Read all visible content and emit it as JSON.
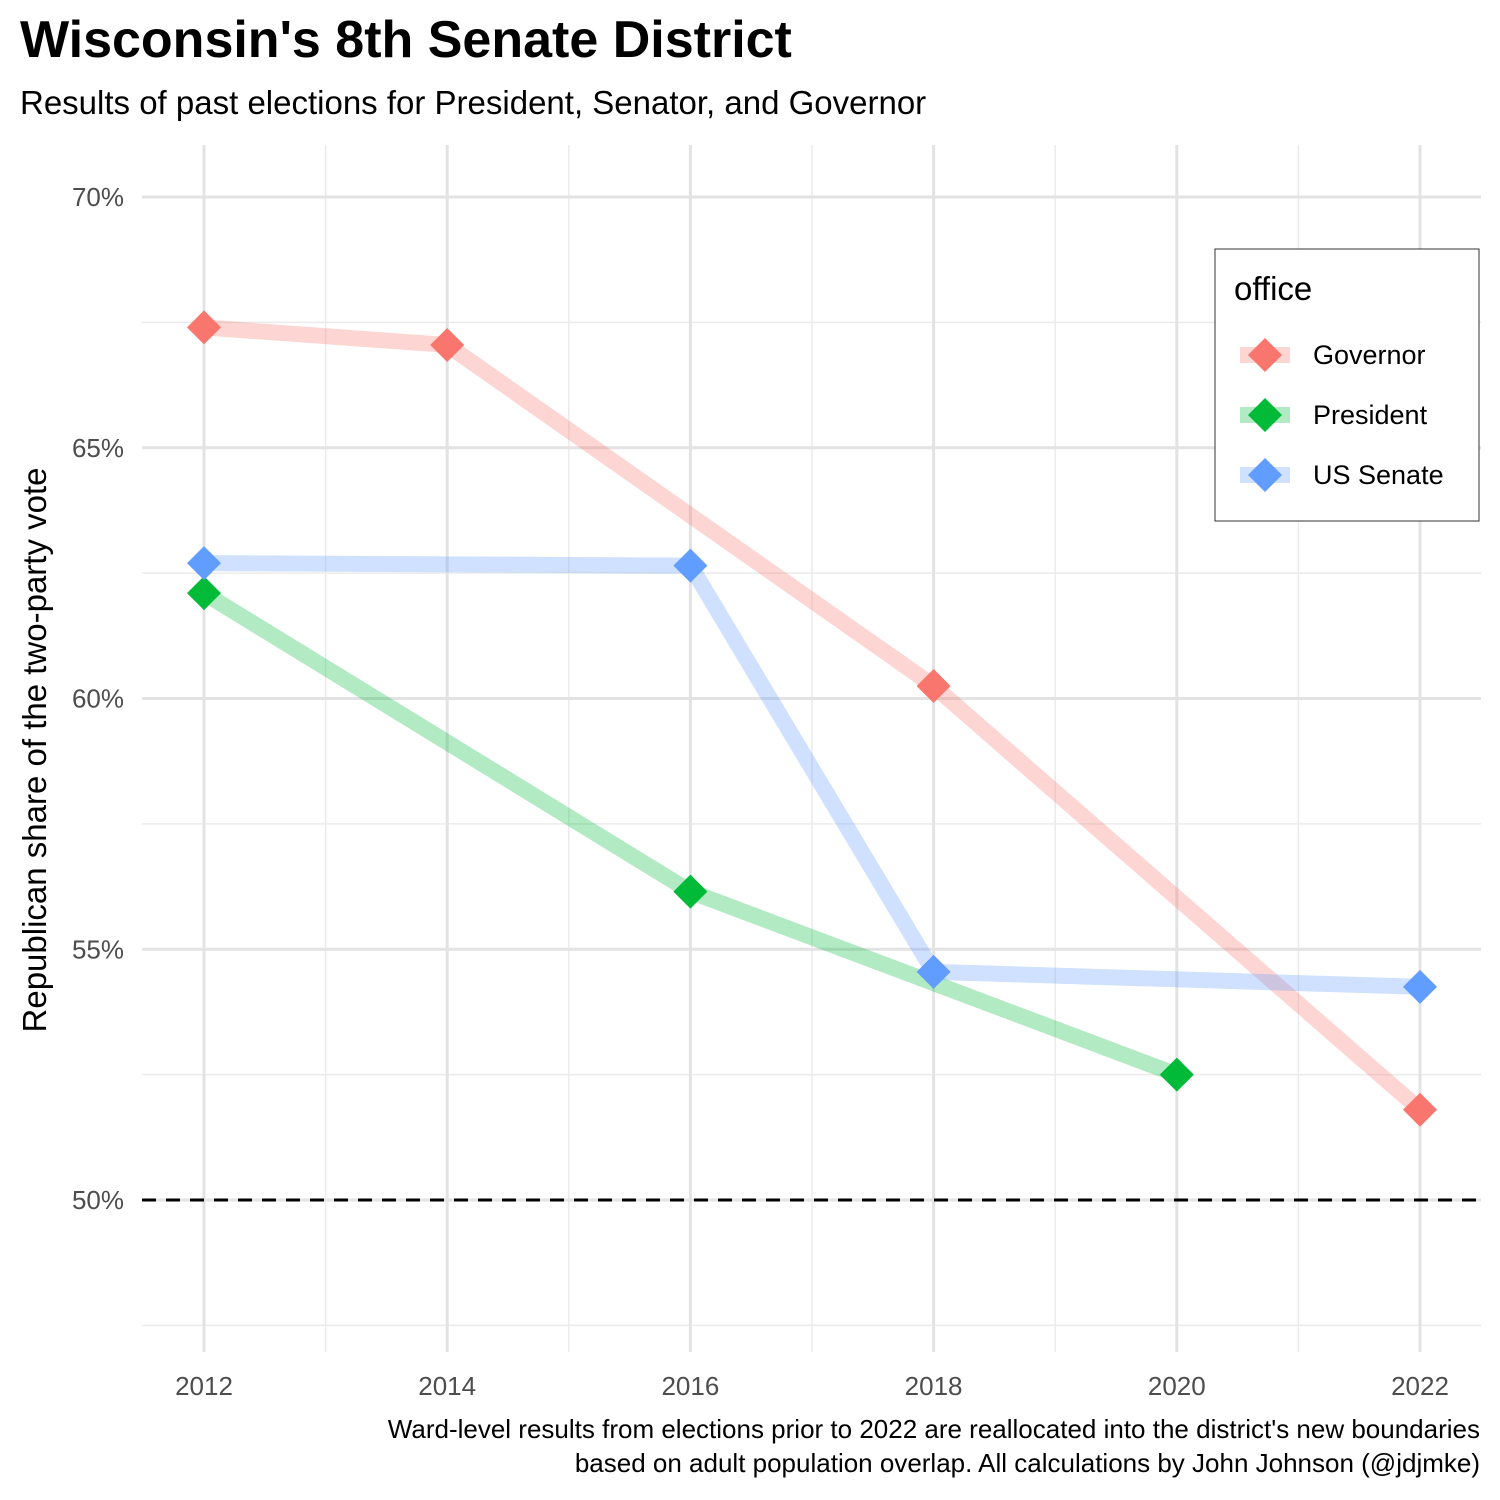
{
  "title": "Wisconsin's 8th Senate District",
  "subtitle": "Results of past elections for President, Senator, and Governor",
  "caption": [
    "Ward-level results from elections prior to 2022 are reallocated into the district's new boundaries",
    "based on adult population overlap. All calculations by John Johnson (@jdjmke)"
  ],
  "chart_data": {
    "type": "line",
    "title": "Wisconsin's 8th Senate District",
    "subtitle": "Results of past elections for President, Senator, and Governor",
    "xlabel": "",
    "ylabel": "Republican share of the two-party vote",
    "xlim": [
      2011.5,
      2022.5
    ],
    "ylim": [
      47.5,
      71.0
    ],
    "x_ticks": [
      2012,
      2014,
      2016,
      2018,
      2020,
      2022
    ],
    "x_tick_labels": [
      "2012",
      "2014",
      "2016",
      "2018",
      "2020",
      "2022"
    ],
    "y_ticks": [
      50,
      55,
      60,
      65,
      70
    ],
    "y_tick_labels": [
      "50%",
      "55%",
      "60%",
      "65%",
      "70%"
    ],
    "grid": true,
    "reference_line": {
      "y": 50,
      "style": "dashed",
      "color": "#000000"
    },
    "legend": {
      "title": "office",
      "position": "top-right"
    },
    "series": [
      {
        "name": "Governor",
        "color": "#F8766D",
        "marker": "diamond",
        "x": [
          2012,
          2014,
          2018,
          2022
        ],
        "y": [
          67.4,
          67.05,
          60.25,
          51.8
        ]
      },
      {
        "name": "President",
        "color": "#00BA38",
        "marker": "diamond",
        "x": [
          2012,
          2016,
          2020
        ],
        "y": [
          62.1,
          56.15,
          52.5
        ]
      },
      {
        "name": "US Senate",
        "color": "#619CFF",
        "marker": "diamond",
        "x": [
          2012,
          2016,
          2018,
          2022
        ],
        "y": [
          62.7,
          62.65,
          54.55,
          54.25
        ]
      }
    ]
  }
}
